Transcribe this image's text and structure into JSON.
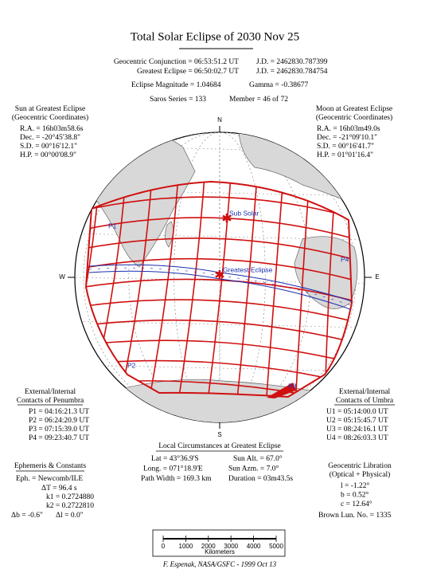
{
  "title": "Total Solar Eclipse of 2030 Nov 25",
  "header": {
    "rows": [
      [
        "Geocentric Conjunction = 06:53:51.2 UT",
        "J.D. = 2462830.787399"
      ],
      [
        "Greatest Eclipse = 06:50:02.7 UT",
        "J.D. = 2462830.784754"
      ],
      [
        "Eclipse Magnitude = 1.04684",
        "Gamma = -0.38677"
      ],
      [
        "Saros Series = 133",
        "Member = 46 of 72"
      ]
    ]
  },
  "sun": {
    "heading": [
      "Sun at Greatest Eclipse",
      "(Geocentric Coordinates)"
    ],
    "lines": [
      "R.A. = 16h03m58.6s",
      "Dec. = -20°45'38.8\"",
      "S.D. = 00°16'12.1\"",
      "H.P. = 00°00'08.9\""
    ]
  },
  "moon": {
    "heading": [
      "Moon at Greatest Eclipse",
      "(Geocentric Coordinates)"
    ],
    "lines": [
      "R.A. = 16h03m49.0s",
      "Dec. = -21°09'10.1\"",
      "S.D. = 00°16'41.7\"",
      "H.P. = 01°01'16.4\""
    ]
  },
  "map": {
    "north": "N",
    "south": "S",
    "west": "W",
    "east": "E",
    "sub_solar": "Sub Solar",
    "greatest_eclipse": "Greatest Eclipse",
    "contacts": [
      "P1",
      "P2",
      "P3",
      "P4"
    ]
  },
  "penumbra": {
    "heading": [
      "External/Internal",
      "Contacts of Penumbra"
    ],
    "lines": [
      "P1 = 04:16:21.3 UT",
      "P2 = 06:24:20.9 UT",
      "P3 = 07:15:39.0 UT",
      "P4 = 09:23:40.7 UT"
    ]
  },
  "umbra": {
    "heading": [
      "External/Internal",
      "Contacts of Umbra"
    ],
    "lines": [
      "U1 = 05:14:00.0 UT",
      "U2 = 05:15:45.7 UT",
      "U3 = 08:24:16.1 UT",
      "U4 = 08:26:03.3 UT"
    ]
  },
  "local": {
    "heading": "Local Circumstances at Greatest Eclipse",
    "rows": [
      [
        "Lat = 43°36.9'S",
        "Sun Alt. = 67.0°"
      ],
      [
        "Long. = 071°18.9'E",
        "Sun Azm. = 7.0°"
      ],
      [
        "Path Width = 169.3 km",
        "Duration = 03m43.5s"
      ]
    ]
  },
  "ephemeris": {
    "heading": "Ephemeris & Constants",
    "lines": [
      "Eph. = Newcomb/ILE",
      "ΔT = 96.4 s",
      "k1 = 0.2724880",
      "k2 = 0.2722810"
    ],
    "last": [
      "Δb = -0.6\"",
      "Δl = 0.0\""
    ]
  },
  "libration": {
    "heading": [
      "Geocentric Libration",
      "(Optical + Physical)"
    ],
    "lines": [
      "l = -1.22°",
      "b = 0.52°",
      "c = 12.64°"
    ],
    "brown": "Brown Lun. No. = 1335"
  },
  "scale": {
    "labels": [
      "0",
      "1000",
      "2000",
      "3000",
      "4000",
      "5000"
    ],
    "unit": "Kilometers"
  },
  "credit": "F. Espenak, NASA/GSFC - 1999 Oct 13"
}
